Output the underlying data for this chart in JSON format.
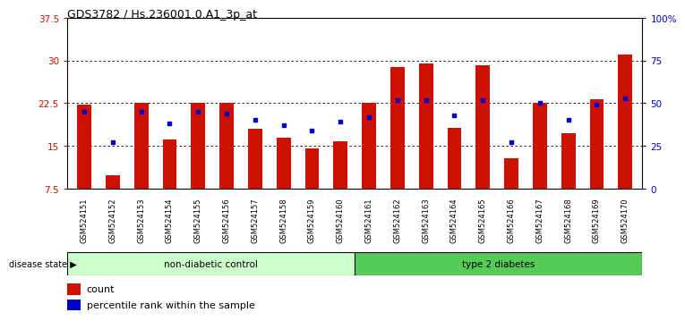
{
  "title": "GDS3782 / Hs.236001.0.A1_3p_at",
  "samples": [
    "GSM524151",
    "GSM524152",
    "GSM524153",
    "GSM524154",
    "GSM524155",
    "GSM524156",
    "GSM524157",
    "GSM524158",
    "GSM524159",
    "GSM524160",
    "GSM524161",
    "GSM524162",
    "GSM524163",
    "GSM524164",
    "GSM524165",
    "GSM524166",
    "GSM524167",
    "GSM524168",
    "GSM524169",
    "GSM524170"
  ],
  "counts": [
    22.2,
    9.8,
    22.5,
    16.2,
    22.5,
    22.5,
    18.0,
    16.5,
    14.5,
    15.8,
    22.5,
    28.8,
    29.5,
    18.2,
    29.2,
    12.8,
    22.5,
    17.2,
    23.2,
    31.0
  ],
  "percentiles": [
    45,
    27,
    45,
    38,
    45,
    44,
    40,
    37,
    34,
    39,
    42,
    52,
    52,
    43,
    52,
    27,
    50,
    40,
    49,
    53
  ],
  "non_diabetic_count": 10,
  "type2_diabetes_count": 10,
  "ylim_left": [
    7.5,
    37.5
  ],
  "ylim_right": [
    0,
    100
  ],
  "yticks_left": [
    7.5,
    15.0,
    22.5,
    30.0,
    37.5
  ],
  "yticks_right": [
    0,
    25,
    50,
    75,
    100
  ],
  "ytick_labels_left": [
    "7.5",
    "15",
    "22.5",
    "30",
    "37.5"
  ],
  "ytick_labels_right": [
    "0",
    "25",
    "50",
    "75",
    "100%"
  ],
  "bar_color": "#cc1100",
  "dot_color": "#0000cc",
  "background_color": "#ffffff",
  "non_diabetic_color": "#ccffcc",
  "type2_color": "#55cc55",
  "label_count": "count",
  "label_percentile": "percentile rank within the sample",
  "disease_state_label": "disease state",
  "non_diabetic_label": "non-diabetic control",
  "type2_label": "type 2 diabetes"
}
